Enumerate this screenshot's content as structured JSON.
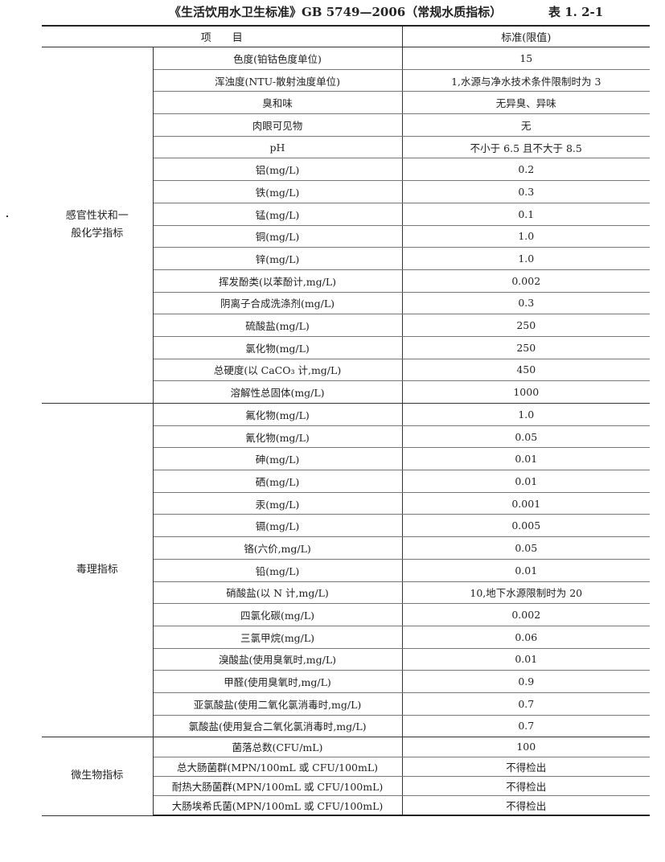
{
  "title": "《生活饮用水卫生标准》GB 5749—2006（常规水质指标）",
  "table_number": "表 1. 2-1",
  "headers": {
    "item": "项　　目",
    "standard": "标准(限值)"
  },
  "sections": [
    {
      "category": "感官性状和一般化学指标",
      "rows": [
        {
          "item": "色度(铂钴色度单位)",
          "value": "15"
        },
        {
          "item": "浑浊度(NTU-散射浊度单位)",
          "value": "1,水源与净水技术条件限制时为 3"
        },
        {
          "item": "臭和味",
          "value": "无异臭、异味"
        },
        {
          "item": "肉眼可见物",
          "value": "无"
        },
        {
          "item": "pH",
          "value": "不小于 6.5 且不大于 8.5"
        },
        {
          "item": "铝(mg/L)",
          "value": "0.2"
        },
        {
          "item": "铁(mg/L)",
          "value": "0.3"
        },
        {
          "item": "锰(mg/L)",
          "value": "0.1"
        },
        {
          "item": "铜(mg/L)",
          "value": "1.0"
        },
        {
          "item": "锌(mg/L)",
          "value": "1.0"
        },
        {
          "item": "挥发酚类(以苯酚计,mg/L)",
          "value": "0.002"
        },
        {
          "item": "阴离子合成洗涤剂(mg/L)",
          "value": "0.3"
        },
        {
          "item": "硫酸盐(mg/L)",
          "value": "250"
        },
        {
          "item": "氯化物(mg/L)",
          "value": "250"
        },
        {
          "item": "总硬度(以 CaCO₃ 计,mg/L)",
          "value": "450"
        },
        {
          "item": "溶解性总固体(mg/L)",
          "value": "1000"
        }
      ]
    },
    {
      "category": "毒理指标",
      "rows": [
        {
          "item": "氟化物(mg/L)",
          "value": "1.0"
        },
        {
          "item": "氰化物(mg/L)",
          "value": "0.05"
        },
        {
          "item": "砷(mg/L)",
          "value": "0.01"
        },
        {
          "item": "硒(mg/L)",
          "value": "0.01"
        },
        {
          "item": "汞(mg/L)",
          "value": "0.001"
        },
        {
          "item": "镉(mg/L)",
          "value": "0.005"
        },
        {
          "item": "铬(六价,mg/L)",
          "value": "0.05"
        },
        {
          "item": "铅(mg/L)",
          "value": "0.01"
        },
        {
          "item": "硝酸盐(以 N 计,mg/L)",
          "value": "10,地下水源限制时为 20"
        },
        {
          "item": "四氯化碳(mg/L)",
          "value": "0.002"
        },
        {
          "item": "三氯甲烷(mg/L)",
          "value": "0.06"
        },
        {
          "item": "溴酸盐(使用臭氧时,mg/L)",
          "value": "0.01"
        },
        {
          "item": "甲醛(使用臭氧时,mg/L)",
          "value": "0.9"
        },
        {
          "item": "亚氯酸盐(使用二氧化氯消毒时,mg/L)",
          "value": "0.7"
        },
        {
          "item": "氯酸盐(使用复合二氧化氯消毒时,mg/L)",
          "value": "0.7"
        }
      ]
    },
    {
      "category": "微生物指标",
      "rows": [
        {
          "item": "菌落总数(CFU/mL)",
          "value": "100"
        },
        {
          "item": "总大肠菌群(MPN/100mL 或 CFU/100mL)",
          "value": "不得检出"
        },
        {
          "item": "耐热大肠菌群(MPN/100mL 或 CFU/100mL)",
          "value": "不得检出"
        },
        {
          "item": "大肠埃希氏菌(MPN/100mL 或 CFU/100mL)",
          "value": "不得检出"
        }
      ]
    }
  ]
}
